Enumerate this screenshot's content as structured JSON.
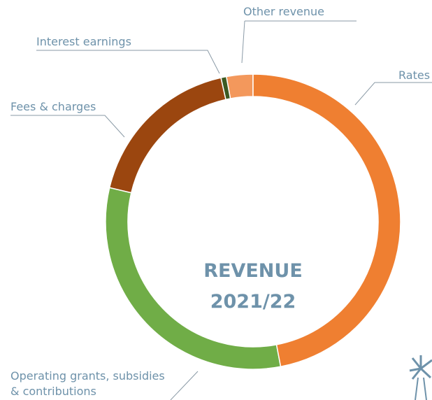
{
  "chart_data": {
    "type": "donut",
    "center_label": [
      "REVENUE",
      "2021/22"
    ],
    "categories": [
      "Rates",
      "Operating grants, subsidies & contributions",
      "Fees & charges",
      "Interest earnings",
      "Other revenue"
    ],
    "values": [
      47,
      31.7,
      17.8,
      0.6,
      2.9
    ],
    "colors": [
      "#ef7f31",
      "#70ad47",
      "#9b460f",
      "#3c5a22",
      "#f3985c"
    ]
  }
}
